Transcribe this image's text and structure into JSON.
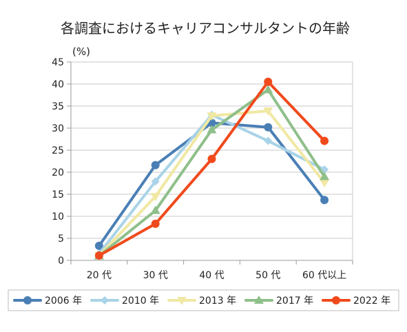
{
  "chart_data": {
    "type": "line",
    "title": "各調査におけるキャリアコンサルタントの年齢",
    "ylabel": "(%)",
    "xlabel": "",
    "categories": [
      "20 代",
      "30 代",
      "40 代",
      "50 代",
      "60 代以上"
    ],
    "ylim": [
      0,
      45
    ],
    "yticks": [
      0,
      5,
      10,
      15,
      20,
      25,
      30,
      35,
      40,
      45
    ],
    "grid": true,
    "legend_position": "bottom",
    "series": [
      {
        "name": "2006 年",
        "values": [
          3.3,
          21.6,
          31.2,
          30.2,
          13.7
        ],
        "color": "#4a7fb5",
        "marker": "circle"
      },
      {
        "name": "2010 年",
        "values": [
          1.5,
          17.9,
          33.0,
          27.1,
          20.6
        ],
        "color": "#a9d3e8",
        "marker": "diamond"
      },
      {
        "name": "2013 年",
        "values": [
          1.1,
          14.5,
          32.8,
          33.9,
          17.6
        ],
        "color": "#f0e8a3",
        "marker": "triangle-down"
      },
      {
        "name": "2017 年",
        "values": [
          1.0,
          11.3,
          29.6,
          38.7,
          19.0
        ],
        "color": "#8fbf8a",
        "marker": "triangle-up"
      },
      {
        "name": "2022 年",
        "values": [
          1.1,
          8.3,
          23.0,
          40.5,
          27.1
        ],
        "color": "#f04a1c",
        "marker": "circle"
      }
    ]
  }
}
